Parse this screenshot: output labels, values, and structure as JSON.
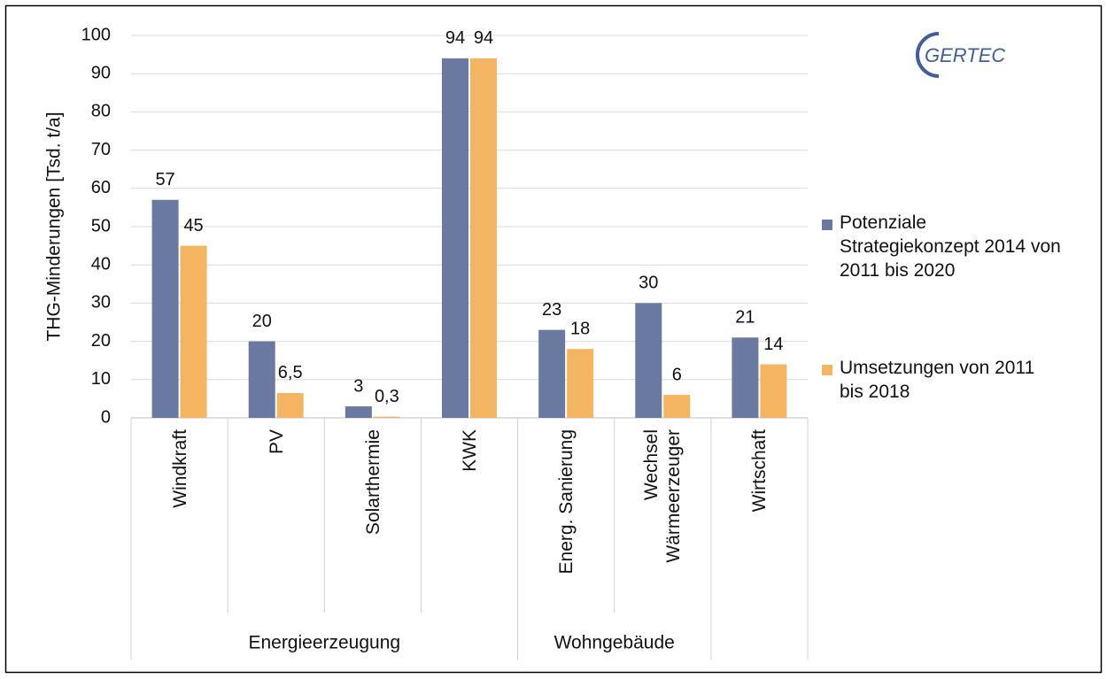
{
  "chart_data": {
    "type": "bar",
    "y_label": "THG-Minderungen [Tsd. t/a]",
    "logo": "GERTEC",
    "categories": [
      "Windkraft",
      "PV",
      "Solarthermie",
      "KWK",
      "Energ. Sanierung",
      "Wechsel\nWärmeerzeuger",
      "Wirtschaft"
    ],
    "groups": [
      "Energieerzeugung",
      "Energieerzeugung",
      "Energieerzeugung",
      "Energieerzeugung",
      "Wohngebäude",
      "Wohngebäude",
      null
    ],
    "series": [
      {
        "name": "Potenziale Strategiekonzept 2014 von 2011 bis 2020",
        "color": "#69799f",
        "values": [
          57,
          20,
          3,
          94,
          23,
          30,
          21
        ]
      },
      {
        "name": "Umsetzungen von 2011 bis 2018",
        "color": "#f4b562",
        "values": [
          45,
          6.5,
          0.3,
          94,
          18,
          6,
          14
        ],
        "value_labels": [
          "45",
          "6,5",
          "0,3",
          "94",
          "18",
          "6",
          "14"
        ]
      }
    ],
    "ylim": [
      0,
      100
    ],
    "yticks": [
      0,
      10,
      20,
      30,
      40,
      50,
      60,
      70,
      80,
      90,
      100
    ],
    "grid": true,
    "legend": "right"
  }
}
